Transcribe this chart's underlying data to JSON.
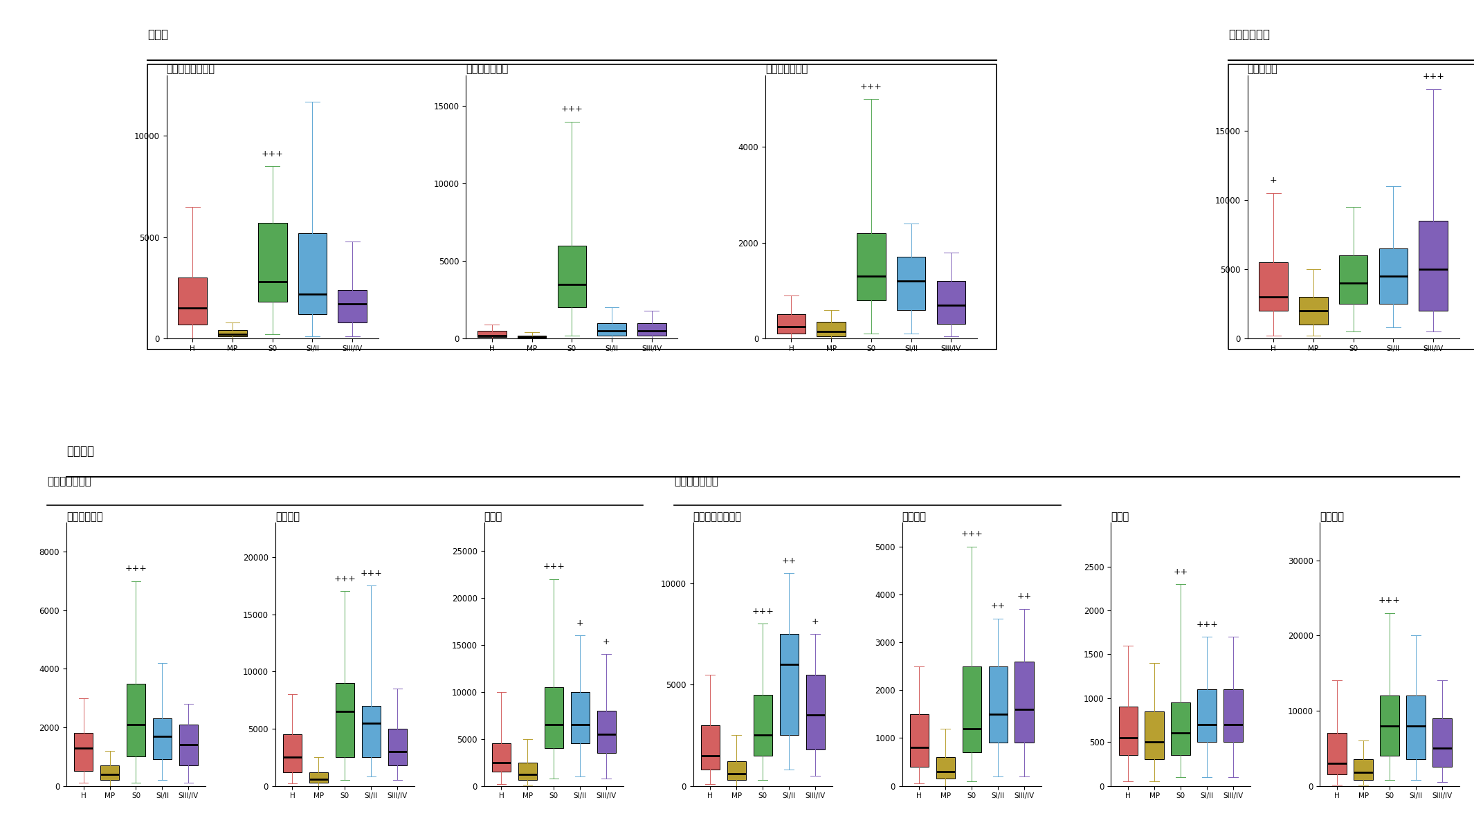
{
  "top_section_title": "胆汁酸",
  "top_right_section_title": "分枝鎖脂肪酸",
  "bottom_section_title": "アミノ酸",
  "bottom_left_sub_title": "分枝鎖アミノ酸",
  "bottom_mid_sub_title": "芳香属アミノ酸",
  "categories": [
    "H",
    "MP",
    "S0",
    "SI/II",
    "SIII/IV"
  ],
  "group_colors": [
    "#d46060",
    "#b8a030",
    "#55a855",
    "#60a8d4",
    "#8060b8"
  ],
  "top_plots": [
    {
      "title": "デオキシコール酸",
      "ylim": [
        0,
        13000
      ],
      "yticks": [
        0,
        5000,
        10000
      ],
      "box_data": [
        {
          "q1": 700,
          "median": 1500,
          "q3": 3000,
          "whislo": 0,
          "whishi": 6500
        },
        {
          "q1": 100,
          "median": 200,
          "q3": 400,
          "whislo": 0,
          "whishi": 800
        },
        {
          "q1": 1800,
          "median": 2800,
          "q3": 5700,
          "whislo": 200,
          "whishi": 8500
        },
        {
          "q1": 1200,
          "median": 2200,
          "q3": 5200,
          "whislo": 100,
          "whishi": 11700
        },
        {
          "q1": 800,
          "median": 1700,
          "q3": 2400,
          "whislo": 100,
          "whishi": 4800
        }
      ],
      "significance": {
        "2": "+++"
      }
    },
    {
      "title": "グリココール酸",
      "ylim": [
        0,
        17000
      ],
      "yticks": [
        0,
        5000,
        10000,
        15000
      ],
      "box_data": [
        {
          "q1": 100,
          "median": 200,
          "q3": 500,
          "whislo": 0,
          "whishi": 900
        },
        {
          "q1": 50,
          "median": 100,
          "q3": 200,
          "whislo": 0,
          "whishi": 400
        },
        {
          "q1": 2000,
          "median": 3500,
          "q3": 6000,
          "whislo": 200,
          "whishi": 14000
        },
        {
          "q1": 200,
          "median": 500,
          "q3": 1000,
          "whislo": 0,
          "whishi": 2000
        },
        {
          "q1": 200,
          "median": 500,
          "q3": 1000,
          "whislo": 0,
          "whishi": 1800
        }
      ],
      "significance": {
        "2": "+++"
      }
    },
    {
      "title": "タウロコール酸",
      "ylim": [
        0,
        5500
      ],
      "yticks": [
        0,
        2000,
        4000
      ],
      "box_data": [
        {
          "q1": 100,
          "median": 250,
          "q3": 500,
          "whislo": 0,
          "whishi": 900
        },
        {
          "q1": 50,
          "median": 150,
          "q3": 350,
          "whislo": 0,
          "whishi": 600
        },
        {
          "q1": 800,
          "median": 1300,
          "q3": 2200,
          "whislo": 100,
          "whishi": 5000
        },
        {
          "q1": 600,
          "median": 1200,
          "q3": 1700,
          "whislo": 100,
          "whishi": 2400
        },
        {
          "q1": 300,
          "median": 700,
          "q3": 1200,
          "whislo": 50,
          "whishi": 1800
        }
      ],
      "significance": {
        "2": "+++"
      }
    }
  ],
  "top_right_plots": [
    {
      "title": "イソ吉草酸",
      "ylim": [
        0,
        19000
      ],
      "yticks": [
        0,
        5000,
        10000,
        15000
      ],
      "box_data": [
        {
          "q1": 2000,
          "median": 3000,
          "q3": 5500,
          "whislo": 200,
          "whishi": 10500
        },
        {
          "q1": 1000,
          "median": 2000,
          "q3": 3000,
          "whislo": 200,
          "whishi": 5000
        },
        {
          "q1": 2500,
          "median": 4000,
          "q3": 6000,
          "whislo": 500,
          "whishi": 9500
        },
        {
          "q1": 2500,
          "median": 4500,
          "q3": 6500,
          "whislo": 800,
          "whishi": 11000
        },
        {
          "q1": 2000,
          "median": 5000,
          "q3": 8500,
          "whislo": 500,
          "whishi": 18000
        }
      ],
      "significance": {
        "0": "+",
        "4": "+++"
      }
    }
  ],
  "bottom_plots": [
    {
      "title": "イソロイシン",
      "ylim": [
        0,
        9000
      ],
      "yticks": [
        0,
        2000,
        4000,
        6000,
        8000
      ],
      "box_data": [
        {
          "q1": 500,
          "median": 1300,
          "q3": 1800,
          "whislo": 100,
          "whishi": 3000
        },
        {
          "q1": 200,
          "median": 400,
          "q3": 700,
          "whislo": 0,
          "whishi": 1200
        },
        {
          "q1": 1000,
          "median": 2100,
          "q3": 3500,
          "whislo": 100,
          "whishi": 7000
        },
        {
          "q1": 900,
          "median": 1700,
          "q3": 2300,
          "whislo": 200,
          "whishi": 4200
        },
        {
          "q1": 700,
          "median": 1400,
          "q3": 2100,
          "whislo": 100,
          "whishi": 2800
        }
      ],
      "significance": {
        "2": "+++"
      }
    },
    {
      "title": "ロイシン",
      "ylim": [
        0,
        23000
      ],
      "yticks": [
        0,
        5000,
        10000,
        15000,
        20000
      ],
      "box_data": [
        {
          "q1": 1200,
          "median": 2500,
          "q3": 4500,
          "whislo": 200,
          "whishi": 8000
        },
        {
          "q1": 300,
          "median": 600,
          "q3": 1200,
          "whislo": 0,
          "whishi": 2500
        },
        {
          "q1": 2500,
          "median": 6500,
          "q3": 9000,
          "whislo": 500,
          "whishi": 17000
        },
        {
          "q1": 2500,
          "median": 5500,
          "q3": 7000,
          "whislo": 800,
          "whishi": 17500
        },
        {
          "q1": 1800,
          "median": 3000,
          "q3": 5000,
          "whislo": 500,
          "whishi": 8500
        }
      ],
      "significance": {
        "2": "+++",
        "3": "+++"
      }
    },
    {
      "title": "バリン",
      "ylim": [
        0,
        28000
      ],
      "yticks": [
        0,
        5000,
        10000,
        15000,
        20000,
        25000
      ],
      "box_data": [
        {
          "q1": 1500,
          "median": 2500,
          "q3": 4500,
          "whislo": 200,
          "whishi": 10000
        },
        {
          "q1": 600,
          "median": 1200,
          "q3": 2500,
          "whislo": 100,
          "whishi": 5000
        },
        {
          "q1": 4000,
          "median": 6500,
          "q3": 10500,
          "whislo": 800,
          "whishi": 22000
        },
        {
          "q1": 4500,
          "median": 6500,
          "q3": 10000,
          "whislo": 1000,
          "whishi": 16000
        },
        {
          "q1": 3500,
          "median": 5500,
          "q3": 8000,
          "whislo": 800,
          "whishi": 14000
        }
      ],
      "significance": {
        "2": "+++",
        "3": "+",
        "4": "+"
      }
    },
    {
      "title": "フェニルアラニン",
      "ylim": [
        0,
        13000
      ],
      "yticks": [
        0,
        5000,
        10000
      ],
      "box_data": [
        {
          "q1": 800,
          "median": 1500,
          "q3": 3000,
          "whislo": 100,
          "whishi": 5500
        },
        {
          "q1": 300,
          "median": 600,
          "q3": 1200,
          "whislo": 0,
          "whishi": 2500
        },
        {
          "q1": 1500,
          "median": 2500,
          "q3": 4500,
          "whislo": 300,
          "whishi": 8000
        },
        {
          "q1": 2500,
          "median": 6000,
          "q3": 7500,
          "whislo": 800,
          "whishi": 10500
        },
        {
          "q1": 1800,
          "median": 3500,
          "q3": 5500,
          "whislo": 500,
          "whishi": 7500
        }
      ],
      "significance": {
        "2": "+++",
        "3": "++",
        "4": "+"
      }
    },
    {
      "title": "チロシン",
      "ylim": [
        0,
        5500
      ],
      "yticks": [
        0,
        1000,
        2000,
        3000,
        4000,
        5000
      ],
      "box_data": [
        {
          "q1": 400,
          "median": 800,
          "q3": 1500,
          "whislo": 50,
          "whishi": 2500
        },
        {
          "q1": 150,
          "median": 300,
          "q3": 600,
          "whislo": 0,
          "whishi": 1200
        },
        {
          "q1": 700,
          "median": 1200,
          "q3": 2500,
          "whislo": 100,
          "whishi": 5000
        },
        {
          "q1": 900,
          "median": 1500,
          "q3": 2500,
          "whislo": 200,
          "whishi": 3500
        },
        {
          "q1": 900,
          "median": 1600,
          "q3": 2600,
          "whislo": 200,
          "whishi": 3700
        }
      ],
      "significance": {
        "2": "+++",
        "3": "++",
        "4": "++"
      }
    },
    {
      "title": "セリン",
      "ylim": [
        0,
        3000
      ],
      "yticks": [
        0,
        500,
        1000,
        1500,
        2000,
        2500
      ],
      "box_data": [
        {
          "q1": 350,
          "median": 550,
          "q3": 900,
          "whislo": 50,
          "whishi": 1600
        },
        {
          "q1": 300,
          "median": 500,
          "q3": 850,
          "whislo": 50,
          "whishi": 1400
        },
        {
          "q1": 350,
          "median": 600,
          "q3": 950,
          "whislo": 100,
          "whishi": 2300
        },
        {
          "q1": 500,
          "median": 700,
          "q3": 1100,
          "whislo": 100,
          "whishi": 1700
        },
        {
          "q1": 500,
          "median": 700,
          "q3": 1100,
          "whislo": 100,
          "whishi": 1700
        }
      ],
      "significance": {
        "2": "++",
        "3": "+++"
      }
    },
    {
      "title": "グリシン",
      "ylim": [
        0,
        35000
      ],
      "yticks": [
        0,
        10000,
        20000,
        30000
      ],
      "box_data": [
        {
          "q1": 1500,
          "median": 3000,
          "q3": 7000,
          "whislo": 100,
          "whishi": 14000
        },
        {
          "q1": 800,
          "median": 1800,
          "q3": 3500,
          "whislo": 100,
          "whishi": 6000
        },
        {
          "q1": 4000,
          "median": 8000,
          "q3": 12000,
          "whislo": 800,
          "whishi": 23000
        },
        {
          "q1": 3500,
          "median": 8000,
          "q3": 12000,
          "whislo": 800,
          "whishi": 20000
        },
        {
          "q1": 2500,
          "median": 5000,
          "q3": 9000,
          "whislo": 500,
          "whishi": 14000
        }
      ],
      "significance": {
        "2": "+++"
      }
    }
  ]
}
